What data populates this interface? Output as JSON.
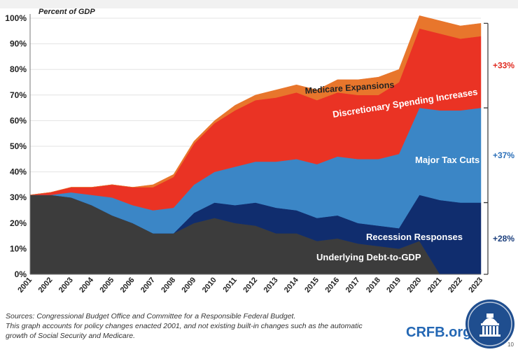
{
  "chart_data": {
    "type": "area",
    "title": "",
    "ylabel": "Percent of GDP",
    "xlabel": "",
    "ylim": [
      0,
      100
    ],
    "yticks": [
      "0%",
      "10%",
      "20%",
      "30%",
      "40%",
      "50%",
      "60%",
      "70%",
      "80%",
      "90%",
      "100%"
    ],
    "x": [
      "2001",
      "2002",
      "2003",
      "2004",
      "2005",
      "2006",
      "2007",
      "2008",
      "2009",
      "2010",
      "2011",
      "2012",
      "2013",
      "2014",
      "2015",
      "2016",
      "2017",
      "2018",
      "2019",
      "2020",
      "2021",
      "2022",
      "2023"
    ],
    "stacked": true,
    "series": [
      {
        "name": "Underlying Debt-to-GDP",
        "color": "#3c3c3c",
        "values": [
          31,
          31,
          30,
          27,
          23,
          20,
          16,
          16,
          20,
          22,
          20,
          19,
          16,
          16,
          13,
          14,
          12,
          11,
          10,
          13,
          0,
          0,
          0
        ]
      },
      {
        "name": "Recession Responses",
        "color": "#102d6e",
        "values": [
          0,
          0,
          0,
          0,
          0,
          0,
          0,
          0,
          4,
          6,
          7,
          9,
          10,
          9,
          9,
          9,
          8,
          8,
          8,
          18,
          29,
          28,
          28
        ]
      },
      {
        "name": "Major Tax Cuts",
        "color": "#3b86c6",
        "values": [
          0,
          0,
          2,
          4,
          7,
          7,
          9,
          10,
          11,
          12,
          15,
          16,
          18,
          20,
          21,
          23,
          25,
          26,
          29,
          34,
          35,
          36,
          37
        ]
      },
      {
        "name": "Discretionary Spending Increases",
        "color": "#ea3324",
        "values": [
          0,
          1,
          2,
          3,
          5,
          7,
          9,
          12,
          16,
          19,
          22,
          24,
          25,
          26,
          25,
          25,
          25,
          25,
          28,
          31,
          30,
          28,
          28
        ]
      },
      {
        "name": "Medicare Expansions",
        "color": "#e8762c",
        "values": [
          0,
          0,
          0,
          0,
          0,
          0,
          1,
          1,
          1,
          1,
          2,
          2,
          3,
          3,
          4,
          5,
          6,
          7,
          5,
          5,
          5,
          5,
          5
        ]
      }
    ],
    "annotations": [
      {
        "text": "Underlying Debt-to-GDP",
        "color": "#ffffff"
      },
      {
        "text": "Recession Responses",
        "color": "#ffffff"
      },
      {
        "text": "Major Tax Cuts",
        "color": "#ffffff"
      },
      {
        "text": "Discretionary Spending Increases",
        "color": "#ffffff"
      },
      {
        "text": "Medicare Expansions",
        "color": "#222222"
      }
    ],
    "brackets": [
      {
        "label": "+33%",
        "range": [
          65,
          98
        ],
        "color": "#e02b20"
      },
      {
        "label": "+37%",
        "range": [
          28,
          65
        ],
        "color": "#2b6fb8"
      },
      {
        "label": "+28%",
        "range": [
          0,
          28
        ],
        "color": "#1c3f7d"
      }
    ]
  },
  "footer": {
    "source_line_1": "Sources: Congressional Budget Office and Committee for a Responsible Federal Budget.",
    "source_line_2": "This graph accounts for policy changes enacted 2001, and not existing built-in changes such as the automatic",
    "source_line_3": "growth of Social Security and Medicare.",
    "brand": "CRFB.org",
    "page_number": "10"
  }
}
